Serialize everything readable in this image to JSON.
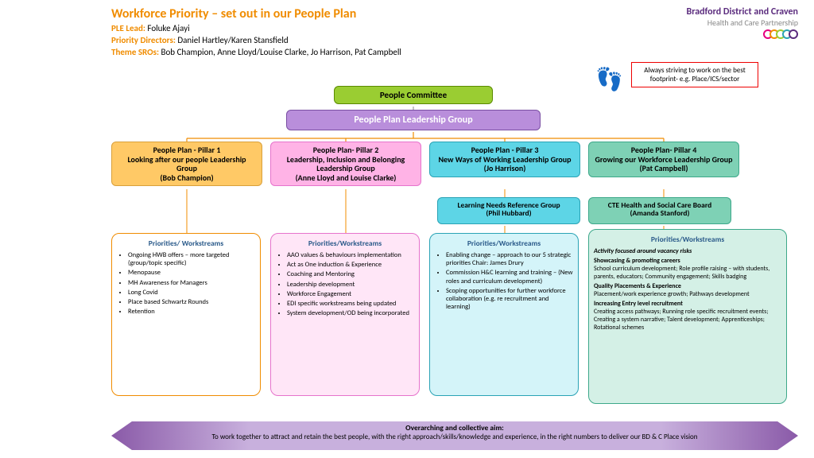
{
  "header": {
    "title": "Workforce Priority – set out in our People Plan",
    "ple_lead_label": "PLE Lead:",
    "ple_lead": "Foluke Ajayi",
    "directors_label": "Priority Directors:",
    "directors": "Daniel Hartley/Karen Stansfield",
    "sros_label": "Theme SROs:",
    "sros": "Bob Champion, Anne Lloyd/Louise Clarke, Jo Harrison, Pat Campbell"
  },
  "logo": {
    "line1_bold": "Bradford District and Craven",
    "line2": "Health and Care Partnership",
    "ring_colors": [
      "#e6007e",
      "#f08c00",
      "#9acd32",
      "#2aa3b5",
      "#5b2c7e"
    ]
  },
  "footnote": {
    "text": "Always striving to work on the best footprint- e.g. Place/ICS/sector"
  },
  "levels": {
    "committee": "People Committee",
    "leadership": "People Plan Leadership Group"
  },
  "pillars": {
    "p1": "People Plan - Pillar 1\nLooking after our people Leadership Group\n(Bob Champion)",
    "p2": "People Plan- Pillar 2\nLeadership, Inclusion and Belonging Leadership Group\n(Anne Lloyd and Louise Clarke)",
    "p3": "People Plan  - Pillar 3\nNew Ways of Working Leadership Group\n(Jo Harrison)",
    "p4": "People Plan- Pillar 4\nGrowing  our Workforce Leadership Group\n(Pat Campbell)"
  },
  "subboxes": {
    "sb3": "Learning Needs Reference Group\n(Phil Hubbard)",
    "sb4": "CTE Health and Social Care Board\n(Amanda Stanford)"
  },
  "work_title": "Priorities/ Workstreams",
  "work_title2": "Priorities/Workstreams",
  "work1": [
    "Ongoing HWB offers – more targeted (group/topic specific)",
    "Menopause",
    "MH Awareness for Managers",
    "Long Covid",
    "Place based Schwartz Rounds",
    "Retention"
  ],
  "work2": [
    "AAO values & behaviours implementation",
    "Act as One induction & Experience",
    "Coaching and Mentoring",
    "Leadership development",
    "Workforce Engagement",
    "EDI specific workstreams being updated",
    "System development/OD being incorporated"
  ],
  "work3": [
    "Enabling change – approach to our 5 strategic priorities Chair: James Drury",
    "Commission H&C learning and training – (New roles and curriculum development)",
    "Scoping opportunities for further workforce collaboration (e.g. re recruitment and learning)"
  ],
  "work4_intro": "Activity focused around vacancy risks",
  "work4_sections": [
    {
      "h": "Showcasing & promoting careers",
      "t": "School curriculum development; Role profile raising – with students, parents, educators; Community engagement; Skills badging"
    },
    {
      "h": "Quality Placements & Experience",
      "t": "Placement/work experience growth; Pathways development"
    },
    {
      "h": "Increasing Entry level recruitment",
      "t": "Creating access pathways; Running role specific recruitment events; Creating a system narrative; Talent development; Apprenticeships; Rotational schemes"
    }
  ],
  "overarching": {
    "title": "Overarching and collective aim:",
    "text": "To work together to attract and retain the best people, with the right approach/skills/knowledge and experience, in the right numbers to deliver our BD & C Place vision"
  },
  "colors": {
    "title": "#f08c00",
    "committee_bg": "#9acd32",
    "leadership_bg": "#b98edb",
    "p1": "#ffc966",
    "p2": "#ffb3e6",
    "p3": "#5dd5e6",
    "p4": "#7ed1b5",
    "foot": "#e6007e",
    "red": "#e00000"
  }
}
